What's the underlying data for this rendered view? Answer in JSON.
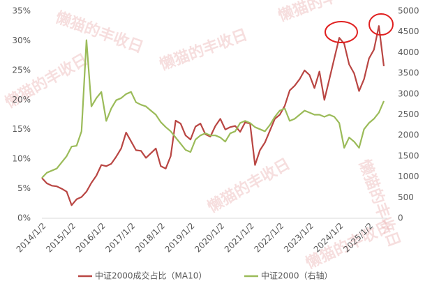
{
  "chart_data": {
    "type": "line",
    "watermark": "懒猫的丰收日",
    "categories": [
      "2014/1/2",
      null,
      null,
      null,
      null,
      null,
      "2015/1/2",
      null,
      null,
      null,
      null,
      null,
      "2016/1/2",
      null,
      null,
      null,
      null,
      null,
      "2017/1/2",
      null,
      null,
      null,
      null,
      null,
      "2018/1/2",
      null,
      null,
      null,
      null,
      null,
      "2019/1/2",
      null,
      null,
      null,
      null,
      null,
      "2020/1/2",
      null,
      null,
      null,
      null,
      null,
      "2021/1/2",
      null,
      null,
      null,
      null,
      null,
      "2022/1/2",
      null,
      null,
      null,
      null,
      null,
      "2023/1/2",
      null,
      null,
      null,
      null,
      null,
      "2024/1/2",
      null,
      null,
      null,
      null,
      null,
      "2025/1/2",
      null,
      null,
      null
    ],
    "series": [
      {
        "name": "中证2000成交占比（MA10）",
        "color": "#b94643",
        "values": [
          6.8,
          5.9,
          5.5,
          5.4,
          5.0,
          4.5,
          2.2,
          3.2,
          3.6,
          4.5,
          6.0,
          7.2,
          9.0,
          8.8,
          9.2,
          10.4,
          11.8,
          14.5,
          13.0,
          11.5,
          11.4,
          10.2,
          11.0,
          11.8,
          8.8,
          8.4,
          10.5,
          16.5,
          16.0,
          14.0,
          13.3,
          15.5,
          16.0,
          14.2,
          13.8,
          15.6,
          16.8,
          15.0,
          15.4,
          15.6,
          14.6,
          16.2,
          16.0,
          9.0,
          11.5,
          12.8,
          14.8,
          16.8,
          17.5,
          19.0,
          21.6,
          22.4,
          23.5,
          25.0,
          24.2,
          22.0,
          24.8,
          20.0,
          23.5,
          27.0,
          30.5,
          29.5,
          26.0,
          24.5,
          21.5,
          23.5,
          27.0,
          28.5,
          32.5,
          25.7
        ]
      },
      {
        "name": "中证2000（右轴）",
        "color": "#9bbb59",
        "axis": "y2",
        "values": [
          975,
          1100,
          1150,
          1200,
          1350,
          1500,
          1730,
          1750,
          2100,
          4300,
          2700,
          2900,
          3050,
          2350,
          2650,
          2850,
          2900,
          3000,
          3050,
          2800,
          2740,
          2700,
          2600,
          2500,
          2320,
          2200,
          2100,
          1950,
          1800,
          1650,
          1600,
          1900,
          2000,
          2050,
          2000,
          2000,
          1950,
          1850,
          2050,
          2100,
          2300,
          2350,
          2300,
          2200,
          2150,
          2100,
          2250,
          2450,
          2600,
          2650,
          2350,
          2400,
          2500,
          2600,
          2550,
          2500,
          2500,
          2450,
          2500,
          2450,
          2300,
          1700,
          1950,
          1850,
          1700,
          2150,
          2300,
          2400,
          2550,
          2830
        ]
      }
    ],
    "ylim": [
      0,
      35
    ],
    "yticks": [
      {
        "value": 0,
        "label": "0%"
      },
      {
        "value": 5,
        "label": "5%"
      },
      {
        "value": 10,
        "label": "10%"
      },
      {
        "value": 15,
        "label": "15%"
      },
      {
        "value": 20,
        "label": "20%"
      },
      {
        "value": 25,
        "label": "25%"
      },
      {
        "value": 30,
        "label": "30%"
      },
      {
        "value": 35,
        "label": "35%"
      }
    ],
    "y2lim": [
      0,
      5000
    ],
    "y2ticks": [
      0,
      500,
      1000,
      1500,
      2000,
      2500,
      3000,
      3500,
      4000,
      4500,
      5000
    ],
    "grid": false,
    "legend": "bottom"
  }
}
